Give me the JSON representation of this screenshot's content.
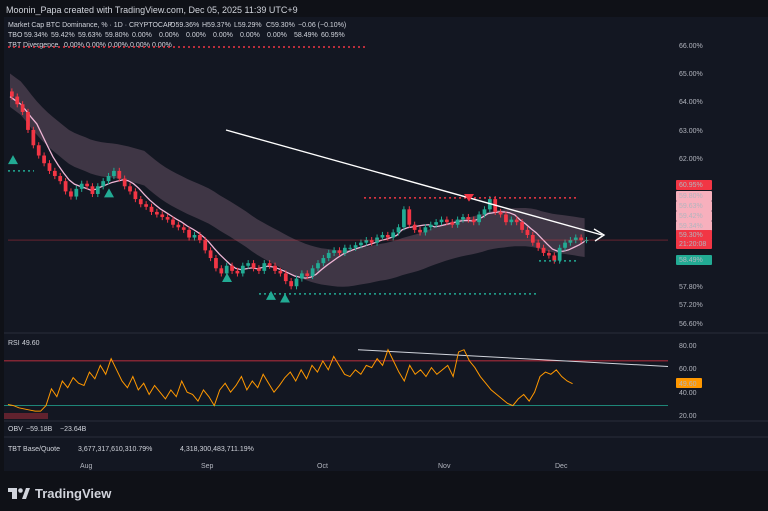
{
  "header": {
    "created_by": "Moonin_Papa created with TradingView.com, Dec 05, 2025 11:39 UTC+9"
  },
  "scale_box": "%",
  "brand": "TradingView",
  "legend": {
    "main_title": "Market Cap BTC Dominance, %  · 1D · CRYPTOCAP",
    "ohlc": [
      "O59.36%",
      "H59.37%",
      "L59.29%",
      "C59.30%",
      "−0.06 (−0.10%)"
    ],
    "tbo_label": "TBO",
    "tbo_values": [
      "59.34%",
      "59.42%",
      "59.63%",
      "59.80%",
      "0.00%",
      "0.00%",
      "0.00%",
      "0.00%",
      "0.00%",
      "0.00%",
      "58.49%",
      "60.95%"
    ],
    "tbd_label": "TBT Divergence",
    "tbd_values": [
      "0.00%",
      "0.00%",
      "0.00%",
      "0.00%",
      "0.00%"
    ]
  },
  "price_badges": [
    "60.95%",
    "59.80%",
    "59.63%",
    "59.42%",
    "59.34%",
    "59.30%",
    "21:20:08",
    "58.49%"
  ],
  "rsi": {
    "label": "RSI",
    "value": "49.60",
    "badge": "49.60"
  },
  "obv": {
    "label": "OBV",
    "value1": "−59.18B",
    "value2": "−23.64B"
  },
  "tbt_bq": {
    "label": "TBT Base/Quote",
    "value1": "3,677,317,610,310.79%",
    "value2": "4,318,300,483,711.19%"
  },
  "chart_data": [
    {
      "type": "candlestick",
      "title": "Market Cap BTC Dominance, %",
      "x_ticks": [
        "Aug",
        "Sep",
        "Oct",
        "Nov",
        "Dec"
      ],
      "y_ticks": [
        "66.00%",
        "65.00%",
        "64.00%",
        "63.00%",
        "62.00%",
        "59.30%",
        "57.80%",
        "57.20%",
        "56.60%"
      ],
      "ylim": [
        56.3,
        66.6
      ],
      "close": [
        64.9,
        64.6,
        64.3,
        63.6,
        63.0,
        62.6,
        62.3,
        62.0,
        61.8,
        61.6,
        61.2,
        61.0,
        61.3,
        61.5,
        61.4,
        61.1,
        61.4,
        61.6,
        61.8,
        62.0,
        61.7,
        61.4,
        61.2,
        60.9,
        60.7,
        60.6,
        60.4,
        60.3,
        60.2,
        60.1,
        59.9,
        59.8,
        59.7,
        59.4,
        59.5,
        59.3,
        58.9,
        58.6,
        58.2,
        58.0,
        58.3,
        58.1,
        58.0,
        58.3,
        58.4,
        58.2,
        58.1,
        58.4,
        58.3,
        58.1,
        58.0,
        57.7,
        57.5,
        57.8,
        58.0,
        57.9,
        58.2,
        58.4,
        58.6,
        58.8,
        58.9,
        58.8,
        59.0,
        59.0,
        59.1,
        59.2,
        59.3,
        59.2,
        59.4,
        59.5,
        59.4,
        59.6,
        59.8,
        60.5,
        59.9,
        59.7,
        59.6,
        59.8,
        59.9,
        60.0,
        60.1,
        60.0,
        59.9,
        60.1,
        60.2,
        60.1,
        60.0,
        60.3,
        60.5,
        60.9,
        60.4,
        60.3,
        60.0,
        60.1,
        60.0,
        59.7,
        59.5,
        59.2,
        59.0,
        58.8,
        58.7,
        58.5,
        59.0,
        59.2,
        59.3,
        59.4,
        59.3,
        59.3
      ]
    },
    {
      "type": "line",
      "title": "RSI",
      "y_ticks": [
        "80.00",
        "60.00",
        "40.00",
        "20.00"
      ],
      "ylim": [
        18,
        86
      ],
      "values": [
        31,
        30,
        28,
        27,
        26,
        25,
        25,
        30,
        45,
        38,
        52,
        46,
        55,
        50,
        48,
        60,
        54,
        66,
        58,
        72,
        62,
        52,
        46,
        56,
        44,
        50,
        40,
        48,
        42,
        36,
        44,
        38,
        52,
        42,
        40,
        34,
        44,
        38,
        30,
        44,
        50,
        42,
        48,
        56,
        44,
        52,
        46,
        58,
        50,
        42,
        48,
        55,
        60,
        52,
        62,
        54,
        66,
        60,
        70,
        62,
        74,
        66,
        58,
        56,
        62,
        58,
        66,
        64,
        72,
        66,
        80,
        70,
        60,
        52,
        66,
        58,
        62,
        56,
        64,
        58,
        62,
        66,
        56,
        78,
        80,
        70,
        64,
        56,
        50,
        44,
        40,
        36,
        32,
        30,
        36,
        40,
        34,
        42,
        56,
        60,
        58,
        62,
        56,
        52,
        49.6
      ]
    }
  ]
}
